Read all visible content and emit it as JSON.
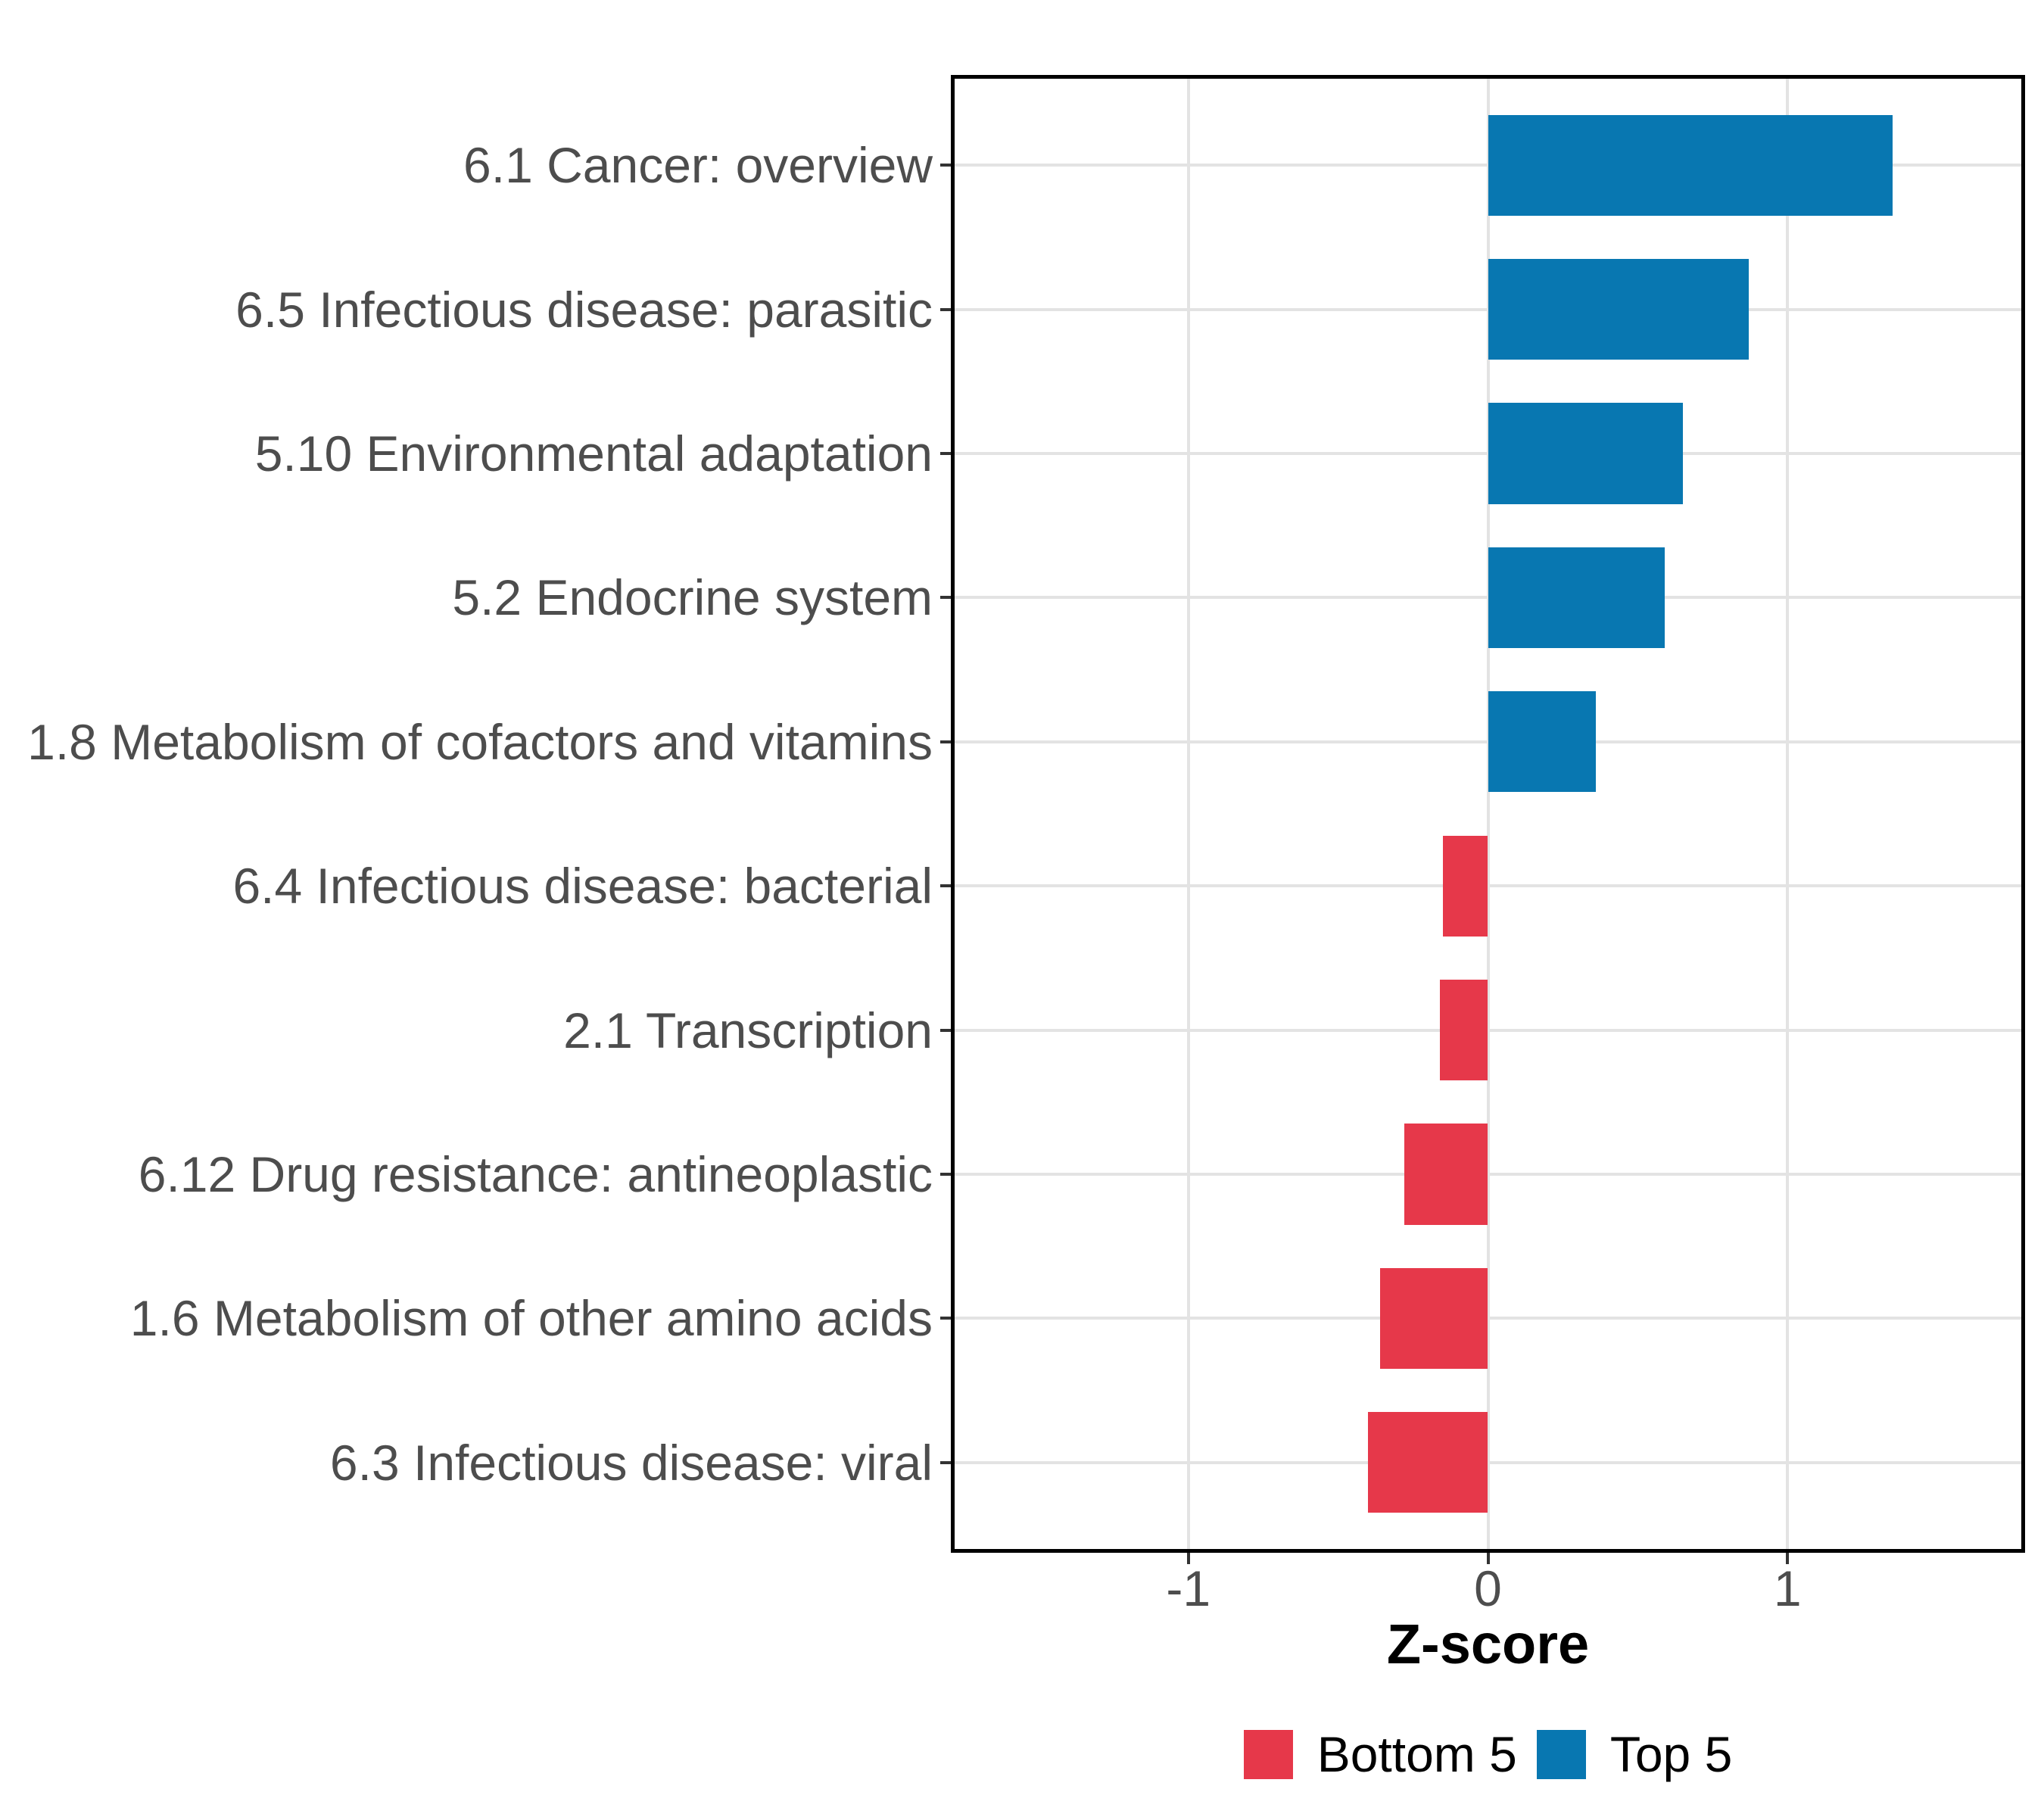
{
  "figure": {
    "background": "#ffffff"
  },
  "chart_data": {
    "type": "bar",
    "orientation": "horizontal",
    "title": "",
    "xlabel": "Z-score",
    "ylabel": "",
    "categories": [
      "6.1 Cancer: overview",
      "6.5 Infectious disease: parasitic",
      "5.10 Environmental adaptation",
      "5.2 Endocrine system",
      "1.8 Metabolism of cofactors and vitamins",
      "6.4 Infectious disease: bacterial",
      "2.1 Transcription",
      "6.12 Drug resistance: antineoplastic",
      "1.6 Metabolism of other amino acids",
      "6.3 Infectious disease: viral"
    ],
    "values": [
      1.35,
      0.87,
      0.65,
      0.59,
      0.36,
      -0.15,
      -0.16,
      -0.28,
      -0.36,
      -0.4
    ],
    "groups": [
      "Top 5",
      "Top 5",
      "Top 5",
      "Top 5",
      "Top 5",
      "Bottom 5",
      "Bottom 5",
      "Bottom 5",
      "Bottom 5",
      "Bottom 5"
    ],
    "series_colors": {
      "Top 5": "#0877B1",
      "Bottom 5": "#E6384A"
    },
    "xlim": [
      -1.78,
      1.78
    ],
    "x_ticks": [
      -1,
      0,
      1
    ],
    "x_tick_labels": [
      "-1",
      "0",
      "1"
    ],
    "bar_width_fraction": 0.7,
    "grid": {
      "major": true,
      "minor": false,
      "color": "#E3E3E3"
    },
    "panel_border_color": "#000000",
    "axis_text_color": "#4d4d4d",
    "legend": {
      "position": "bottom",
      "entries": [
        {
          "label": "Bottom 5",
          "color": "#E6384A"
        },
        {
          "label": "Top 5",
          "color": "#0877B1"
        }
      ]
    }
  }
}
